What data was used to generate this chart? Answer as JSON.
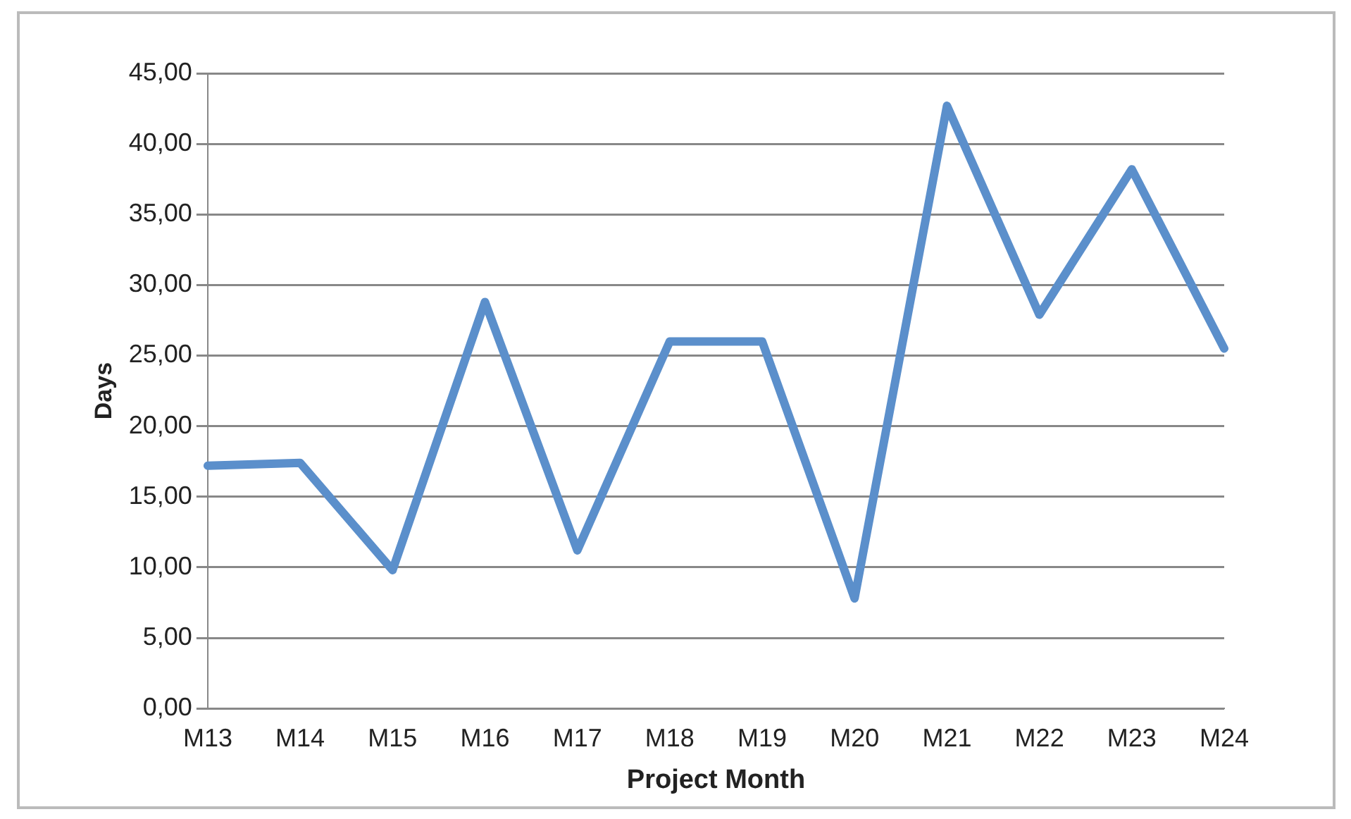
{
  "chart_data": {
    "type": "line",
    "xlabel": "Project Month",
    "ylabel": "Days",
    "categories": [
      "M13",
      "M14",
      "M15",
      "M16",
      "M17",
      "M18",
      "M19",
      "M20",
      "M21",
      "M22",
      "M23",
      "M24"
    ],
    "series": [
      {
        "color": "#5b8fcb",
        "values": [
          17.2,
          17.4,
          9.8,
          28.8,
          11.2,
          26.0,
          26.0,
          7.8,
          42.7,
          27.9,
          38.2,
          25.5
        ]
      }
    ],
    "ylim": [
      0,
      45
    ],
    "yticks": [
      {
        "value": 0,
        "label": "0,00"
      },
      {
        "value": 5,
        "label": "5,00"
      },
      {
        "value": 10,
        "label": "10,00"
      },
      {
        "value": 15,
        "label": "15,00"
      },
      {
        "value": 20,
        "label": "20,00"
      },
      {
        "value": 25,
        "label": "25,00"
      },
      {
        "value": 30,
        "label": "30,00"
      },
      {
        "value": 35,
        "label": "35,00"
      },
      {
        "value": 40,
        "label": "40,00"
      },
      {
        "value": 45,
        "label": "45,00"
      }
    ],
    "grid": "y",
    "legend": false,
    "marker": "none",
    "line_style": "solid"
  }
}
